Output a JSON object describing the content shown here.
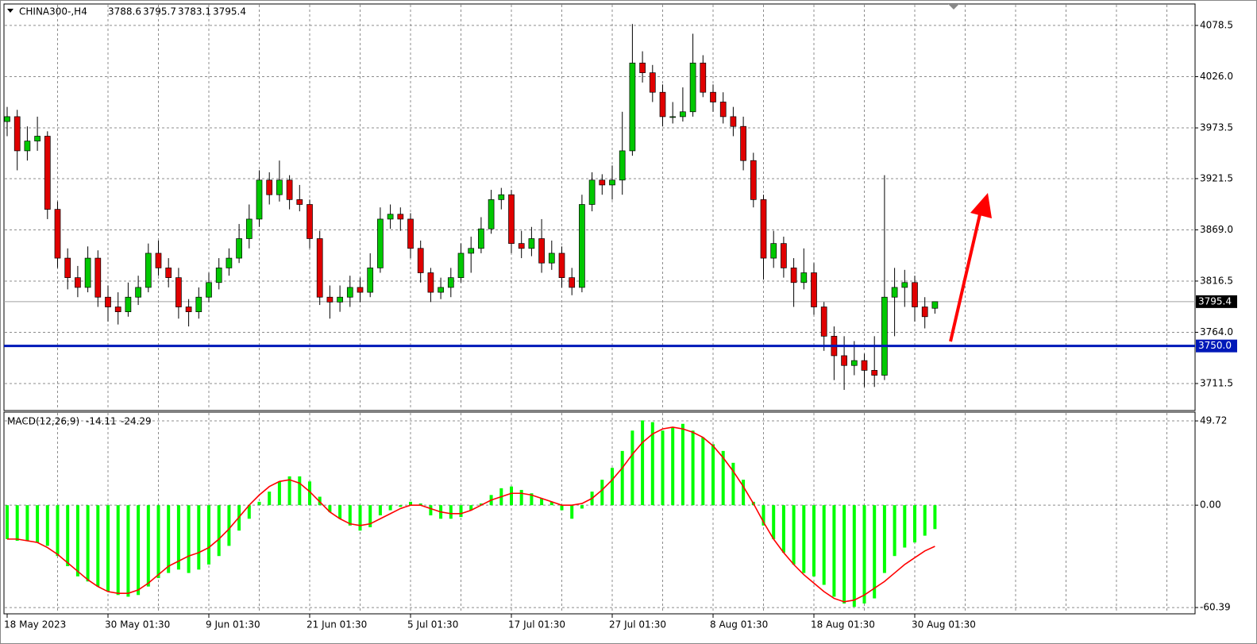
{
  "chart_data": [
    {
      "type": "candlestick",
      "title": "CHINA300-,H4",
      "categories": [
        "18 May 2023",
        null,
        null,
        null,
        null,
        null,
        null,
        null,
        null,
        null,
        "30 May 01:30",
        null,
        null,
        null,
        null,
        null,
        null,
        null,
        null,
        null,
        "9 Jun 01:30",
        null,
        null,
        null,
        null,
        null,
        null,
        null,
        null,
        null,
        "21 Jun 01:30",
        null,
        null,
        null,
        null,
        null,
        null,
        null,
        null,
        null,
        "5 Jul 01:30",
        null,
        null,
        null,
        null,
        null,
        null,
        null,
        null,
        null,
        "17 Jul 01:30",
        null,
        null,
        null,
        null,
        null,
        null,
        null,
        null,
        null,
        "27 Jul 01:30",
        null,
        null,
        null,
        null,
        null,
        null,
        null,
        null,
        null,
        "8 Aug 01:30",
        null,
        null,
        null,
        null,
        null,
        null,
        null,
        null,
        null,
        "18 Aug 01:30",
        null,
        null,
        null,
        null,
        null,
        null,
        null,
        null,
        null,
        "30 Aug 01:30",
        null,
        null
      ],
      "ohlc": [
        [
          3980,
          3995,
          3965,
          3985
        ],
        [
          3985,
          3992,
          3930,
          3950
        ],
        [
          3950,
          3975,
          3940,
          3960
        ],
        [
          3960,
          3985,
          3950,
          3965
        ],
        [
          3965,
          3970,
          3880,
          3890
        ],
        [
          3890,
          3898,
          3830,
          3840
        ],
        [
          3840,
          3850,
          3808,
          3820
        ],
        [
          3820,
          3832,
          3800,
          3810
        ],
        [
          3810,
          3852,
          3805,
          3840
        ],
        [
          3840,
          3848,
          3790,
          3800
        ],
        [
          3800,
          3812,
          3775,
          3790
        ],
        [
          3790,
          3805,
          3772,
          3785
        ],
        [
          3785,
          3815,
          3780,
          3800
        ],
        [
          3800,
          3822,
          3792,
          3810
        ],
        [
          3810,
          3855,
          3805,
          3845
        ],
        [
          3845,
          3858,
          3822,
          3830
        ],
        [
          3830,
          3840,
          3810,
          3820
        ],
        [
          3820,
          3830,
          3778,
          3790
        ],
        [
          3790,
          3798,
          3770,
          3785
        ],
        [
          3785,
          3810,
          3778,
          3800
        ],
        [
          3800,
          3825,
          3795,
          3815
        ],
        [
          3815,
          3840,
          3808,
          3830
        ],
        [
          3830,
          3850,
          3822,
          3840
        ],
        [
          3840,
          3875,
          3835,
          3860
        ],
        [
          3860,
          3895,
          3850,
          3880
        ],
        [
          3880,
          3930,
          3872,
          3920
        ],
        [
          3920,
          3928,
          3895,
          3905
        ],
        [
          3905,
          3940,
          3898,
          3920
        ],
        [
          3920,
          3925,
          3890,
          3900
        ],
        [
          3900,
          3915,
          3888,
          3895
        ],
        [
          3895,
          3900,
          3850,
          3860
        ],
        [
          3860,
          3868,
          3792,
          3800
        ],
        [
          3800,
          3812,
          3778,
          3795
        ],
        [
          3795,
          3812,
          3785,
          3800
        ],
        [
          3800,
          3822,
          3790,
          3810
        ],
        [
          3810,
          3820,
          3795,
          3805
        ],
        [
          3805,
          3845,
          3800,
          3830
        ],
        [
          3830,
          3892,
          3825,
          3880
        ],
        [
          3880,
          3895,
          3870,
          3885
        ],
        [
          3885,
          3892,
          3868,
          3880
        ],
        [
          3880,
          3886,
          3840,
          3850
        ],
        [
          3850,
          3858,
          3815,
          3825
        ],
        [
          3825,
          3830,
          3795,
          3805
        ],
        [
          3805,
          3820,
          3798,
          3810
        ],
        [
          3810,
          3830,
          3800,
          3820
        ],
        [
          3820,
          3855,
          3815,
          3845
        ],
        [
          3845,
          3862,
          3825,
          3850
        ],
        [
          3850,
          3882,
          3845,
          3870
        ],
        [
          3870,
          3910,
          3865,
          3900
        ],
        [
          3900,
          3912,
          3890,
          3905
        ],
        [
          3905,
          3910,
          3845,
          3855
        ],
        [
          3855,
          3868,
          3840,
          3850
        ],
        [
          3850,
          3872,
          3842,
          3860
        ],
        [
          3860,
          3880,
          3825,
          3835
        ],
        [
          3835,
          3858,
          3828,
          3845
        ],
        [
          3845,
          3852,
          3810,
          3820
        ],
        [
          3820,
          3830,
          3802,
          3810
        ],
        [
          3810,
          3905,
          3805,
          3895
        ],
        [
          3895,
          3928,
          3888,
          3920
        ],
        [
          3920,
          3926,
          3905,
          3915
        ],
        [
          3915,
          3935,
          3900,
          3920
        ],
        [
          3920,
          3990,
          3905,
          3950
        ],
        [
          3950,
          4080,
          3945,
          4040
        ],
        [
          4040,
          4052,
          4020,
          4030
        ],
        [
          4030,
          4038,
          4000,
          4010
        ],
        [
          4010,
          4018,
          3975,
          3985
        ],
        [
          3985,
          4000,
          3978,
          3985
        ],
        [
          3985,
          4015,
          3980,
          3990
        ],
        [
          3990,
          4070,
          3985,
          4040
        ],
        [
          4040,
          4048,
          4005,
          4010
        ],
        [
          4010,
          4018,
          3990,
          4000
        ],
        [
          4000,
          4010,
          3978,
          3985
        ],
        [
          3985,
          3995,
          3965,
          3975
        ],
        [
          3975,
          3985,
          3930,
          3940
        ],
        [
          3940,
          3948,
          3892,
          3900
        ],
        [
          3900,
          3905,
          3818,
          3840
        ],
        [
          3840,
          3868,
          3830,
          3855
        ],
        [
          3855,
          3862,
          3820,
          3830
        ],
        [
          3830,
          3840,
          3790,
          3815
        ],
        [
          3815,
          3850,
          3808,
          3825
        ],
        [
          3825,
          3835,
          3782,
          3790
        ],
        [
          3790,
          3795,
          3745,
          3760
        ],
        [
          3760,
          3770,
          3715,
          3740
        ],
        [
          3740,
          3760,
          3705,
          3730
        ],
        [
          3730,
          3755,
          3720,
          3735
        ],
        [
          3735,
          3742,
          3708,
          3725
        ],
        [
          3725,
          3760,
          3708,
          3720
        ],
        [
          3720,
          3925,
          3715,
          3800
        ],
        [
          3800,
          3830,
          3760,
          3810
        ],
        [
          3810,
          3828,
          3790,
          3815
        ],
        [
          3815,
          3822,
          3775,
          3790
        ],
        [
          3790,
          3800,
          3768,
          3780
        ],
        [
          3788.6,
          3795.7,
          3783.1,
          3795.4
        ]
      ],
      "up_color": "#00c800",
      "down_color": "#e00000",
      "ylim": [
        3683.8,
        4100.5
      ],
      "yticks": [
        3711.5,
        {
          "value": 3764,
          "label": "3764.0"
        },
        3816.5,
        {
          "value": 3869,
          "label": "3869.0"
        },
        3921.5,
        3973.5,
        {
          "value": 4026,
          "label": "4026.0"
        },
        4078.5
      ],
      "grid": true,
      "level": {
        "value": 3750,
        "label": "3750.0",
        "color": "#0018b8"
      }
    },
    {
      "type": "macd",
      "title": "MACD(12,26,9)",
      "series": [
        {
          "color": "#00ff00",
          "values": [
            -20,
            -21,
            -21,
            -22,
            -24,
            -30,
            -36,
            -42,
            -45,
            -48,
            -51,
            -53,
            -54,
            -53,
            -48,
            -43,
            -40,
            -38,
            -40,
            -38,
            -35,
            -30,
            -24,
            -15,
            -8,
            2,
            8,
            14,
            17,
            17,
            14,
            5,
            -4,
            -8,
            -12,
            -15,
            -13,
            -6,
            -3,
            -1,
            2,
            1,
            -6,
            -8,
            -8,
            -7,
            -3,
            1,
            6,
            10,
            11,
            9,
            7,
            4,
            2,
            -3,
            -8,
            -2,
            8,
            15,
            22,
            32,
            44,
            50,
            49,
            44,
            46,
            48,
            44,
            40,
            36,
            32,
            25,
            15,
            2,
            -12,
            -20,
            -28,
            -35,
            -40,
            -42,
            -47,
            -54,
            -58,
            -60,
            -58,
            -55,
            -40,
            -30,
            -25,
            -22,
            -18,
            -14.11
          ]
        },
        {
          "color": "#ff0000",
          "values": [
            -20,
            -20,
            -21,
            -22,
            -25,
            -29,
            -34,
            -39,
            -44,
            -48,
            -51,
            -52,
            -52,
            -50,
            -46,
            -41,
            -36,
            -33,
            -30,
            -28,
            -25,
            -20,
            -14,
            -7,
            0,
            6,
            11,
            14,
            15,
            13,
            8,
            2,
            -4,
            -8,
            -11,
            -12,
            -11,
            -8,
            -5,
            -2,
            0,
            0,
            -2,
            -4,
            -5,
            -5,
            -3,
            0,
            3,
            5,
            7,
            7,
            6,
            4,
            2,
            0,
            0,
            1,
            4,
            9,
            15,
            22,
            30,
            37,
            42,
            45,
            46,
            45,
            43,
            40,
            35,
            28,
            20,
            11,
            1,
            -10,
            -20,
            -28,
            -35,
            -41,
            -46,
            -51,
            -55,
            -57,
            -56,
            -53,
            -49,
            -45,
            -40,
            -35,
            -31,
            -27,
            -24.29
          ]
        }
      ],
      "ylim": [
        -64.1,
        54.9
      ],
      "yticks": [
        49.72,
        {
          "value": 0,
          "label": "0.00"
        },
        -60.39
      ],
      "grid": true
    }
  ]
}
